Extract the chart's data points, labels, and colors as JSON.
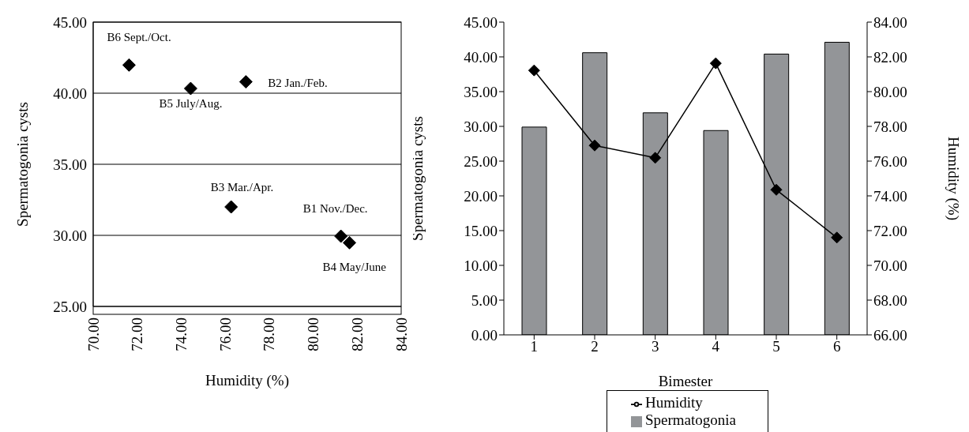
{
  "chart_data": [
    {
      "type": "scatter",
      "xlabel": "Humidity (%)",
      "ylabel": "Spermatogonia cysts",
      "xlim": [
        70,
        84
      ],
      "xticks": [
        {
          "value": 70,
          "label": "70.00"
        },
        {
          "value": 72,
          "label": "72.00"
        },
        {
          "value": 74,
          "label": "74.00"
        },
        {
          "value": 76,
          "label": "76.00"
        },
        {
          "value": 78,
          "label": "78.00"
        },
        {
          "value": 80,
          "label": "80.00"
        },
        {
          "value": 82,
          "label": "82.00"
        },
        {
          "value": 84,
          "label": "84.00"
        }
      ],
      "ylim": [
        25,
        45
      ],
      "yticks": [
        {
          "value": 25,
          "label": "25.00"
        },
        {
          "value": 30,
          "label": "30.00"
        },
        {
          "value": 35,
          "label": "35.00"
        },
        {
          "value": 40,
          "label": "40.00"
        },
        {
          "value": 45,
          "label": "45.00"
        }
      ],
      "grid": "y",
      "marker": "diamond",
      "series": [
        {
          "color": "#000000",
          "x": [
            81.26,
            76.94,
            76.27,
            81.65,
            74.43,
            71.63
          ],
          "values": [
            29.94,
            40.8,
            32.0,
            29.48,
            40.33,
            41.98
          ]
        }
      ],
      "annotations": [
        {
          "text": "B1 Nov./Dec.",
          "x": 81.26,
          "y": 29.94
        },
        {
          "text": "B2 Jan./Feb.",
          "x": 76.94,
          "y": 40.8
        },
        {
          "text": "B3 Mar./Apr.",
          "x": 76.27,
          "y": 32.0
        },
        {
          "text": "B4 May/June",
          "x": 81.65,
          "y": 29.48
        },
        {
          "text": "B5 July/Aug.",
          "x": 74.43,
          "y": 40.33
        },
        {
          "text": "B6 Sept./Oct.",
          "x": 71.63,
          "y": 41.98
        }
      ]
    },
    {
      "type": "bar",
      "xlabel": "Bimester",
      "ylabel": "Spermatogonia cysts",
      "y2label": "Humidity (%)",
      "categories": [
        "1",
        "2",
        "3",
        "4",
        "5",
        "6"
      ],
      "ylim": [
        0,
        45
      ],
      "yticks": [
        {
          "value": 0,
          "label": "0.00"
        },
        {
          "value": 5,
          "label": "5.00"
        },
        {
          "value": 10,
          "label": "10.00"
        },
        {
          "value": 15,
          "label": "15.00"
        },
        {
          "value": 20,
          "label": "20.00"
        },
        {
          "value": 25,
          "label": "25.00"
        },
        {
          "value": 30,
          "label": "30.00"
        },
        {
          "value": 35,
          "label": "35.00"
        },
        {
          "value": 40,
          "label": "40.00"
        },
        {
          "value": 45,
          "label": "45.00"
        }
      ],
      "y2lim": [
        66,
        84
      ],
      "y2ticks": [
        {
          "value": 66,
          "label": "66.00"
        },
        {
          "value": 68,
          "label": "68.00"
        },
        {
          "value": 70,
          "label": "70.00"
        },
        {
          "value": 72,
          "label": "72.00"
        },
        {
          "value": 74,
          "label": "74.00"
        },
        {
          "value": 76,
          "label": "76.00"
        },
        {
          "value": 78,
          "label": "78.00"
        },
        {
          "value": 80,
          "label": "80.00"
        },
        {
          "value": 82,
          "label": "82.00"
        },
        {
          "value": 84,
          "label": "84.00"
        }
      ],
      "legend": "bottom",
      "series": [
        {
          "name": "Spermatogonia",
          "color": "#939598",
          "values": [
            29.9,
            40.6,
            31.95,
            29.4,
            40.4,
            42.1
          ]
        },
        {
          "name": "Humidity",
          "type": "line",
          "axis": "y2",
          "marker": "diamond",
          "color": "#000000",
          "values": [
            81.22,
            76.9,
            76.19,
            81.63,
            74.35,
            71.6
          ]
        }
      ]
    }
  ]
}
